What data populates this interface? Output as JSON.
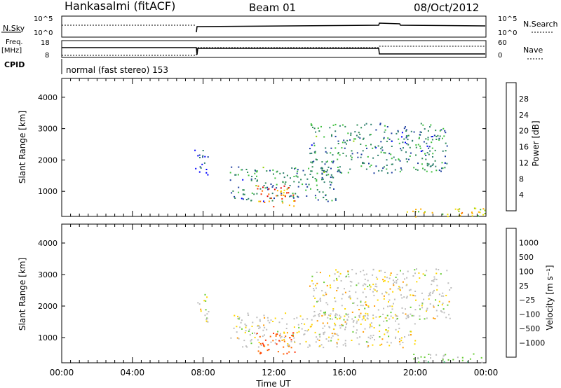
{
  "header": {
    "station": "Hankasalmi (fitACF)",
    "beam": "Beam 01",
    "date": "08/Oct/2012"
  },
  "top_panels": {
    "nsky_label": "N.Sky",
    "nsky_ticks": [
      "10^5",
      "10^0"
    ],
    "nsearch_ticks": [
      "10^5",
      "10^0"
    ],
    "nsearch_label": "N.Search",
    "freq_label_1": "Freq.",
    "freq_label_2": "[MHz]",
    "freq_ticks": [
      "18",
      "8"
    ],
    "nave_ticks": [
      "60",
      "0"
    ],
    "nave_label": "Nave",
    "cpid_label": "CPID",
    "cpid_text": "normal (fast stereo) 153"
  },
  "chart_data": [
    {
      "type": "heatmap",
      "name": "power",
      "ylabel": "Slant Range [km]",
      "ylim": [
        200,
        4600
      ],
      "yticks": [
        1000,
        2000,
        3000,
        4000
      ],
      "xlim": [
        0,
        24
      ],
      "colorbar": {
        "label": "Power [dB]",
        "ticks": [
          "28",
          "24",
          "20",
          "16",
          "12",
          "8",
          "4"
        ],
        "colors": [
          "#e00000",
          "#f03000",
          "#ff7000",
          "#ffb000",
          "#f0e000",
          "#90d000",
          "#40c040",
          "#2e8b57",
          "#2f7f6f",
          "#1f3fa0",
          "#0000ff"
        ]
      },
      "regions": [
        {
          "t": [
            7.5,
            8.3
          ],
          "r": [
            1500,
            2400
          ],
          "level": 4
        },
        {
          "t": [
            9.5,
            15.5
          ],
          "r": [
            700,
            1800
          ],
          "level": 10
        },
        {
          "t": [
            11.0,
            13.2
          ],
          "r": [
            500,
            1200
          ],
          "level": 24
        },
        {
          "t": [
            14.0,
            21.8
          ],
          "r": [
            1600,
            3200
          ],
          "level": 10
        },
        {
          "t": [
            19.5,
            24.0
          ],
          "r": [
            200,
            500
          ],
          "level": 18
        }
      ]
    },
    {
      "type": "heatmap",
      "name": "velocity",
      "ylabel": "Slant Range [km]",
      "ylim": [
        200,
        4600
      ],
      "yticks": [
        1000,
        2000,
        3000,
        4000
      ],
      "xlim": [
        0,
        24
      ],
      "xticks": [
        "00:00",
        "04:00",
        "08:00",
        "12:00",
        "16:00",
        "20:00",
        "00:00"
      ],
      "xlabel": "Time UT",
      "colorbar": {
        "label": "Velocity [m s⁻¹]",
        "ticks": [
          "1000",
          "500",
          "100",
          "25",
          "−25",
          "−100",
          "−500",
          "−1000"
        ],
        "colors": [
          "#1a3fb0",
          "#2f6fc0",
          "#2e8b57",
          "#3cb371",
          "#66cc33",
          "#bebebe",
          "#bebebe",
          "#ffd700",
          "#ff9a00",
          "#ff6a00",
          "#ff3000",
          "#e00000"
        ]
      },
      "regions": [
        {
          "t": [
            7.5,
            8.3
          ],
          "r": [
            1500,
            2400
          ],
          "level": 0
        },
        {
          "t": [
            9.5,
            20.0
          ],
          "r": [
            700,
            1800
          ],
          "level": 0
        },
        {
          "t": [
            11.0,
            13.2
          ],
          "r": [
            500,
            1200
          ],
          "level": -300
        },
        {
          "t": [
            14.0,
            22.0
          ],
          "r": [
            1600,
            3200
          ],
          "level": 0
        },
        {
          "t": [
            19.8,
            24.0
          ],
          "r": [
            200,
            500
          ],
          "level": 60
        }
      ]
    }
  ]
}
